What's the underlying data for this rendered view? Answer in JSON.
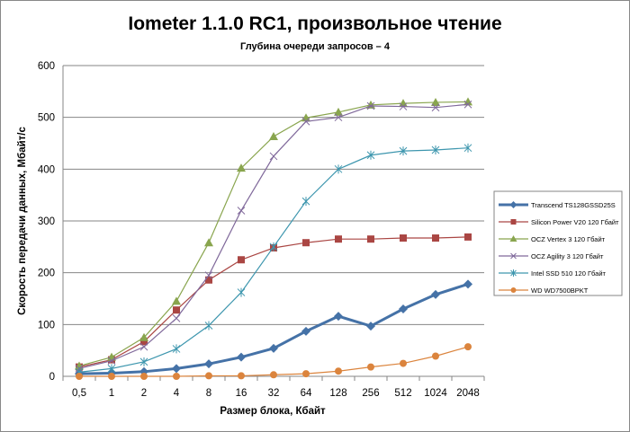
{
  "chart_data": {
    "type": "line",
    "title": "Iometer 1.1.0 RC1, произвольное чтение",
    "subtitle": "Глубина очереди запросов – 4",
    "xlabel": "Размер блока, Кбайт",
    "ylabel": "Скорость передачи данных, Мбайт/с",
    "ylim": [
      0,
      600
    ],
    "yticks": [
      "0",
      "100",
      "200",
      "300",
      "400",
      "500",
      "600"
    ],
    "categories": [
      "0,5",
      "1",
      "2",
      "4",
      "8",
      "16",
      "32",
      "64",
      "128",
      "256",
      "512",
      "1024",
      "2048"
    ],
    "grid": true,
    "legend_position": "right",
    "series": [
      {
        "name": "Transcend TS128GSSD25S",
        "color": "#4572a7",
        "marker": "diamond",
        "values": [
          5,
          6,
          9,
          15,
          24,
          37,
          54,
          87,
          116,
          97,
          130,
          158,
          178
        ]
      },
      {
        "name": "Silicon Power V20 120 Гбайт",
        "color": "#aa4643",
        "marker": "square",
        "values": [
          18,
          32,
          67,
          128,
          186,
          225,
          248,
          258,
          265,
          265,
          267,
          267,
          269
        ]
      },
      {
        "name": "OCZ Vertex 3 120 Гбайт",
        "color": "#89a54e",
        "marker": "triangle",
        "values": [
          20,
          37,
          75,
          145,
          258,
          402,
          463,
          499,
          510,
          524,
          527,
          529,
          530
        ]
      },
      {
        "name": "OCZ Agility 3 120 Гбайт",
        "color": "#80699b",
        "marker": "x",
        "values": [
          15,
          30,
          57,
          112,
          195,
          320,
          425,
          492,
          500,
          522,
          521,
          519,
          525
        ]
      },
      {
        "name": "Intel SSD 510 120 Гбайт",
        "color": "#3d96ae",
        "marker": "star",
        "values": [
          8,
          15,
          28,
          53,
          98,
          162,
          250,
          338,
          400,
          427,
          435,
          437,
          441
        ]
      },
      {
        "name": "WD WD7500BPKT",
        "color": "#db843d",
        "marker": "circle",
        "values": [
          0,
          0,
          0,
          0,
          1,
          1,
          3,
          5,
          10,
          18,
          25,
          39,
          57
        ]
      }
    ]
  }
}
